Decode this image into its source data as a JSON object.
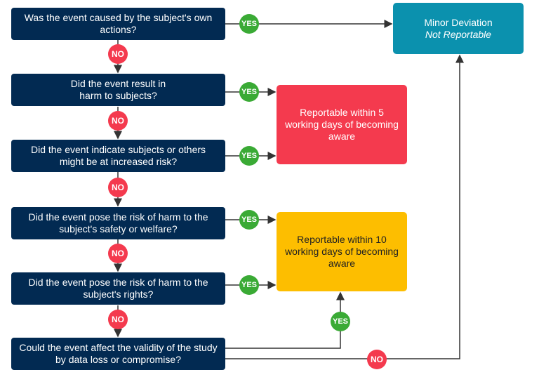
{
  "questions": [
    "Was the event caused by the subject's own actions?",
    "Did the event result in\nharm to subjects?",
    "Did the event indicate subjects or others might be at increased risk?",
    "Did the event pose the risk of harm to the subject's safety or welfare?",
    "Did the event pose the risk of harm to the subject's rights?",
    "Could the event affect the validity of the study by data loss or compromise?"
  ],
  "outcomes": {
    "minor": {
      "title": "Minor Deviation",
      "subtitle": "Not Reportable",
      "color": "#0b91ae"
    },
    "five_days": {
      "text": "Reportable within 5 working days of becoming aware",
      "color": "#f43a4e"
    },
    "ten_days": {
      "text": "Reportable within 10 working days of becoming aware",
      "color": "#fdbe00"
    }
  },
  "labels": {
    "yes": "YES",
    "no": "NO"
  },
  "colors": {
    "question": "#022a52",
    "yes": "#3aaa35",
    "no": "#f43a4e",
    "line": "#333333"
  }
}
